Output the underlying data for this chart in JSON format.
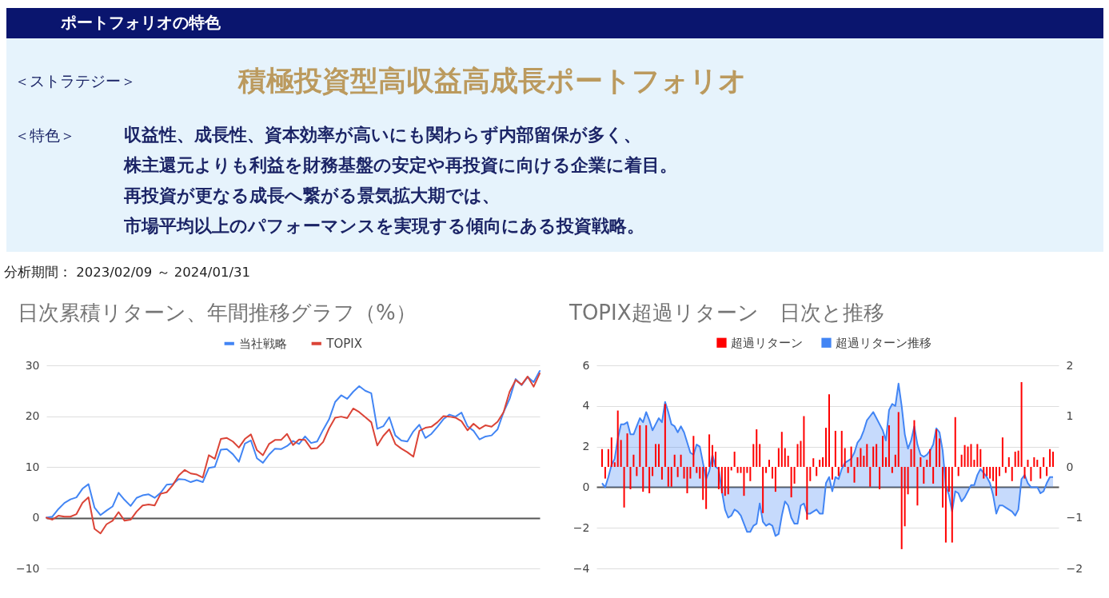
{
  "chart_data": [
    {
      "type": "other",
      "title": "ポートフォリオの特色",
      "annotations": [
        "＜ストラテジー＞",
        "積極投資型高収益高成長ポートフォリオ",
        "＜特色＞",
        "収益性、成長性、資本効率が高いにも関わらず内部留保が多く、",
        "株主還元よりも利益を財務基盤の安定や再投資に向ける企業に着目。",
        "再投資が更なる成長へ繋がる景気拡大期では、",
        "市場平均以上のパフォーマンスを実現する傾向にある投資戦略。",
        "分析期間： 2023/02/09 ～ 2024/01/31"
      ]
    },
    {
      "type": "line",
      "title": "日次累積リターン、年間推移グラフ（%）",
      "categories": [
        null,
        null,
        null,
        null,
        null,
        null,
        null,
        null,
        null,
        null,
        null,
        null,
        null,
        null,
        null,
        null,
        null,
        null,
        null,
        null,
        null,
        null,
        null,
        null,
        null,
        null,
        null,
        null,
        null,
        null,
        null,
        null,
        null,
        null,
        null,
        null,
        null,
        null,
        null,
        null,
        null,
        null,
        null,
        null,
        null,
        null,
        null,
        null,
        null,
        null,
        null,
        null,
        null,
        null,
        null,
        null,
        null,
        null,
        null,
        null,
        null,
        null,
        null,
        null,
        null,
        null,
        null,
        null,
        null,
        null,
        null,
        null,
        null,
        null,
        null,
        null,
        null,
        null,
        null,
        null,
        null,
        null,
        null
      ],
      "series": [
        {
          "name": "当社戦略",
          "color": "#4285f4",
          "values": [
            0,
            0.2,
            1.7,
            2.9,
            3.6,
            4.0,
            5.7,
            6.6,
            2.0,
            0.5,
            1.4,
            2.2,
            4.9,
            3.5,
            2.3,
            3.9,
            4.4,
            4.6,
            3.9,
            4.9,
            6.5,
            6.6,
            7.6,
            7.5,
            7.0,
            7.4,
            7.0,
            9.8,
            10.0,
            13.4,
            13.5,
            12.5,
            11.0,
            14.6,
            15.2,
            11.7,
            10.8,
            12.4,
            13.6,
            13.5,
            14.1,
            15.1,
            14.5,
            16.0,
            14.7,
            15.0,
            17.3,
            19.4,
            22.8,
            24.1,
            23.4,
            24.8,
            25.9,
            25.0,
            24.5,
            17.5,
            18.0,
            19.8,
            16.2,
            15.2,
            15.0,
            17.0,
            18.3,
            15.7,
            16.5,
            17.9,
            19.4,
            20.3,
            19.9,
            20.7,
            18.0,
            17.1,
            15.4,
            16.0,
            16.2,
            17.4,
            20.8,
            23.4,
            27.3,
            26.1,
            27.7,
            26.7,
            28.9
          ]
        },
        {
          "name": "TOPIX",
          "color": "#db4437",
          "values": [
            0,
            -0.4,
            0.4,
            0.2,
            0.2,
            0.7,
            2.9,
            4.0,
            -2.2,
            -3.1,
            -1.3,
            -0.6,
            1.1,
            -0.6,
            -0.4,
            1.2,
            2.4,
            2.6,
            2.4,
            4.7,
            5.0,
            6.4,
            8.3,
            9.4,
            8.7,
            8.5,
            7.9,
            12.3,
            11.6,
            15.5,
            15.7,
            15.0,
            13.8,
            15.5,
            16.4,
            13.3,
            12.3,
            14.5,
            15.3,
            15.3,
            16.5,
            14.3,
            15.4,
            15.3,
            13.6,
            13.7,
            14.9,
            17.6,
            19.7,
            19.9,
            19.6,
            21.5,
            20.8,
            19.8,
            18.8,
            14.2,
            16.1,
            17.4,
            14.5,
            13.6,
            12.9,
            12.0,
            17.1,
            17.7,
            17.9,
            18.8,
            20.0,
            19.9,
            19.7,
            19.0,
            17.2,
            18.5,
            17.5,
            18.2,
            17.9,
            18.9,
            20.8,
            24.8,
            27.1,
            26.2,
            27.8,
            25.8,
            28.4
          ]
        }
      ],
      "ylim": [
        -10,
        30
      ],
      "yticks": [
        -10,
        0,
        10,
        20,
        30
      ],
      "grid": "y",
      "legend": "top",
      "tick_labels": "y",
      "line_style": "solid"
    },
    {
      "type": "bar",
      "title": "TOPIX超過リターン　日次と推移",
      "categories": [
        null,
        null,
        null,
        null,
        null,
        null,
        null,
        null,
        null,
        null,
        null,
        null,
        null,
        null,
        null,
        null,
        null,
        null,
        null,
        null,
        null,
        null,
        null,
        null,
        null,
        null,
        null,
        null,
        null,
        null,
        null,
        null,
        null,
        null,
        null,
        null,
        null,
        null,
        null,
        null,
        null,
        null,
        null,
        null,
        null,
        null,
        null,
        null,
        null,
        null,
        null,
        null,
        null,
        null,
        null,
        null,
        null,
        null,
        null,
        null,
        null,
        null,
        null,
        null,
        null,
        null,
        null,
        null,
        null,
        null,
        null,
        null,
        null,
        null,
        null,
        null,
        null,
        null,
        null,
        null,
        null,
        null,
        null,
        null,
        null,
        null,
        null,
        null,
        null,
        null,
        null,
        null,
        null,
        null,
        null,
        null,
        null,
        null,
        null,
        null,
        null,
        null,
        null,
        null,
        null,
        null,
        null,
        null,
        null,
        null,
        null,
        null,
        null,
        null,
        null,
        null,
        null,
        null,
        null,
        null,
        null,
        null,
        null,
        null,
        null,
        null,
        null,
        null,
        null,
        null,
        null,
        null,
        null,
        null,
        null,
        null,
        null,
        null,
        null,
        null,
        null,
        null,
        null,
        null
      ],
      "series": [
        {
          "name": "超過リターン",
          "type": "bar",
          "axis": "y2",
          "color": "#ff0000",
          "values": [
            0.35,
            -0.23,
            0.35,
            0.58,
            0.09,
            1.11,
            0.53,
            -0.8,
            0.66,
            -0.44,
            0.24,
            -0.18,
            0.82,
            -0.49,
            0.82,
            -0.52,
            -0.18,
            0.45,
            0.45,
            -0.25,
            1.24,
            -0.39,
            -0.39,
            0.24,
            -0.2,
            0.24,
            -0.23,
            -0.52,
            -0.23,
            0.61,
            -0.12,
            -0.23,
            -0.65,
            -0.83,
            0.64,
            0.43,
            0.3,
            -0.44,
            -0.52,
            -0.57,
            -0.54,
            -0.07,
            0.3,
            -0.12,
            -0.12,
            -0.57,
            -0.12,
            -0.28,
            0.45,
            0.74,
            0.45,
            -0.91,
            -0.12,
            0.14,
            -0.23,
            -0.49,
            0.37,
            0.69,
            0.37,
            0.22,
            -0.6,
            -0.33,
            0.45,
            0.51,
            1.0,
            -1.04,
            -0.28,
            0.17,
            -0.18,
            0.14,
            0.19,
            0.77,
            1.43,
            -0.25,
            0.71,
            -0.18,
            0.71,
            0.37,
            -0.12,
            0.4,
            -0.31,
            0.19,
            0.37,
            0.22,
            0.45,
            -0.39,
            0.4,
            0.45,
            -0.44,
            0.61,
            0.19,
            0.82,
            -0.12,
            0.24,
            1.08,
            -1.62,
            -1.17,
            -0.54,
            0.35,
            0.92,
            -0.76,
            0.19,
            -0.33,
            0.14,
            0.35,
            -0.33,
            0.74,
            0.56,
            -0.8,
            -1.49,
            -0.49,
            -1.49,
            0.98,
            -0.18,
            0.24,
            0.43,
            0.4,
            0.45,
            0.14,
            0.45,
            0.35,
            -0.23,
            -0.18,
            -0.23,
            -0.28,
            -0.57,
            -0.18,
            0.58,
            -0.12,
            0.19,
            -0.28,
            0.3,
            0.32,
            1.67,
            -0.23,
            0.14,
            -0.28,
            0.19,
            0.14,
            -0.23,
            0.19,
            -0.18,
            0.35,
            0.3
          ]
        },
        {
          "name": "超過リターン推移",
          "type": "area",
          "color": "#4285f4",
          "values": [
            0.2,
            0.0,
            0.5,
            1.1,
            1.4,
            2.4,
            3.1,
            3.1,
            3.2,
            2.6,
            2.6,
            3.0,
            3.4,
            3.2,
            3.7,
            3.3,
            2.8,
            3.1,
            3.4,
            3.2,
            4.2,
            3.7,
            3.1,
            3.0,
            2.7,
            3.0,
            2.7,
            2.2,
            1.7,
            1.6,
            2.1,
            2.0,
            1.2,
            0.4,
            0.8,
            1.6,
            1.0,
            0.9,
            -0.2,
            -1.1,
            -1.5,
            -1.4,
            -1.1,
            -1.2,
            -1.4,
            -1.8,
            -2.2,
            -2.2,
            -1.9,
            -1.8,
            -0.8,
            -1.7,
            -1.9,
            -1.8,
            -1.9,
            -2.4,
            -2.3,
            -1.4,
            -0.7,
            -0.9,
            -1.5,
            -1.8,
            -1.8,
            -0.9,
            -0.8,
            -1.3,
            -1.3,
            -1.2,
            -1.1,
            -1.3,
            -1.3,
            0.2,
            0.5,
            -0.2,
            0.5,
            0.4,
            0.9,
            1.2,
            1.3,
            1.4,
            1.7,
            2.2,
            2.4,
            2.8,
            3.3,
            3.5,
            3.7,
            3.4,
            3.1,
            2.8,
            2.3,
            3.8,
            4.1,
            4.0,
            5.1,
            4.0,
            2.6,
            1.9,
            2.3,
            3.0,
            2.1,
            1.6,
            1.5,
            1.6,
            1.8,
            2.1,
            2.9,
            2.7,
            1.8,
            0.1,
            -0.4,
            -1.2,
            -0.2,
            -0.3,
            -0.7,
            -0.5,
            -0.2,
            0.1,
            0.1,
            0.6,
            0.9,
            0.7,
            0.5,
            0.2,
            -0.4,
            -1.3,
            -0.9,
            -0.9,
            -1.0,
            -1.1,
            -1.2,
            -1.4,
            -1.1,
            0.4,
            0.6,
            0.2,
            0.0,
            0.0,
            0.0,
            -0.3,
            -0.2,
            0.2,
            0.5,
            0.5
          ]
        }
      ],
      "ylim": [
        -4,
        6
      ],
      "yticks": [
        -4,
        -2,
        0,
        2,
        4,
        6
      ],
      "y2lim": [
        -2,
        2
      ],
      "y2ticks": [
        -2,
        -1,
        0,
        1,
        2
      ],
      "grid": "y",
      "legend": "top",
      "tick_labels": "y"
    }
  ]
}
